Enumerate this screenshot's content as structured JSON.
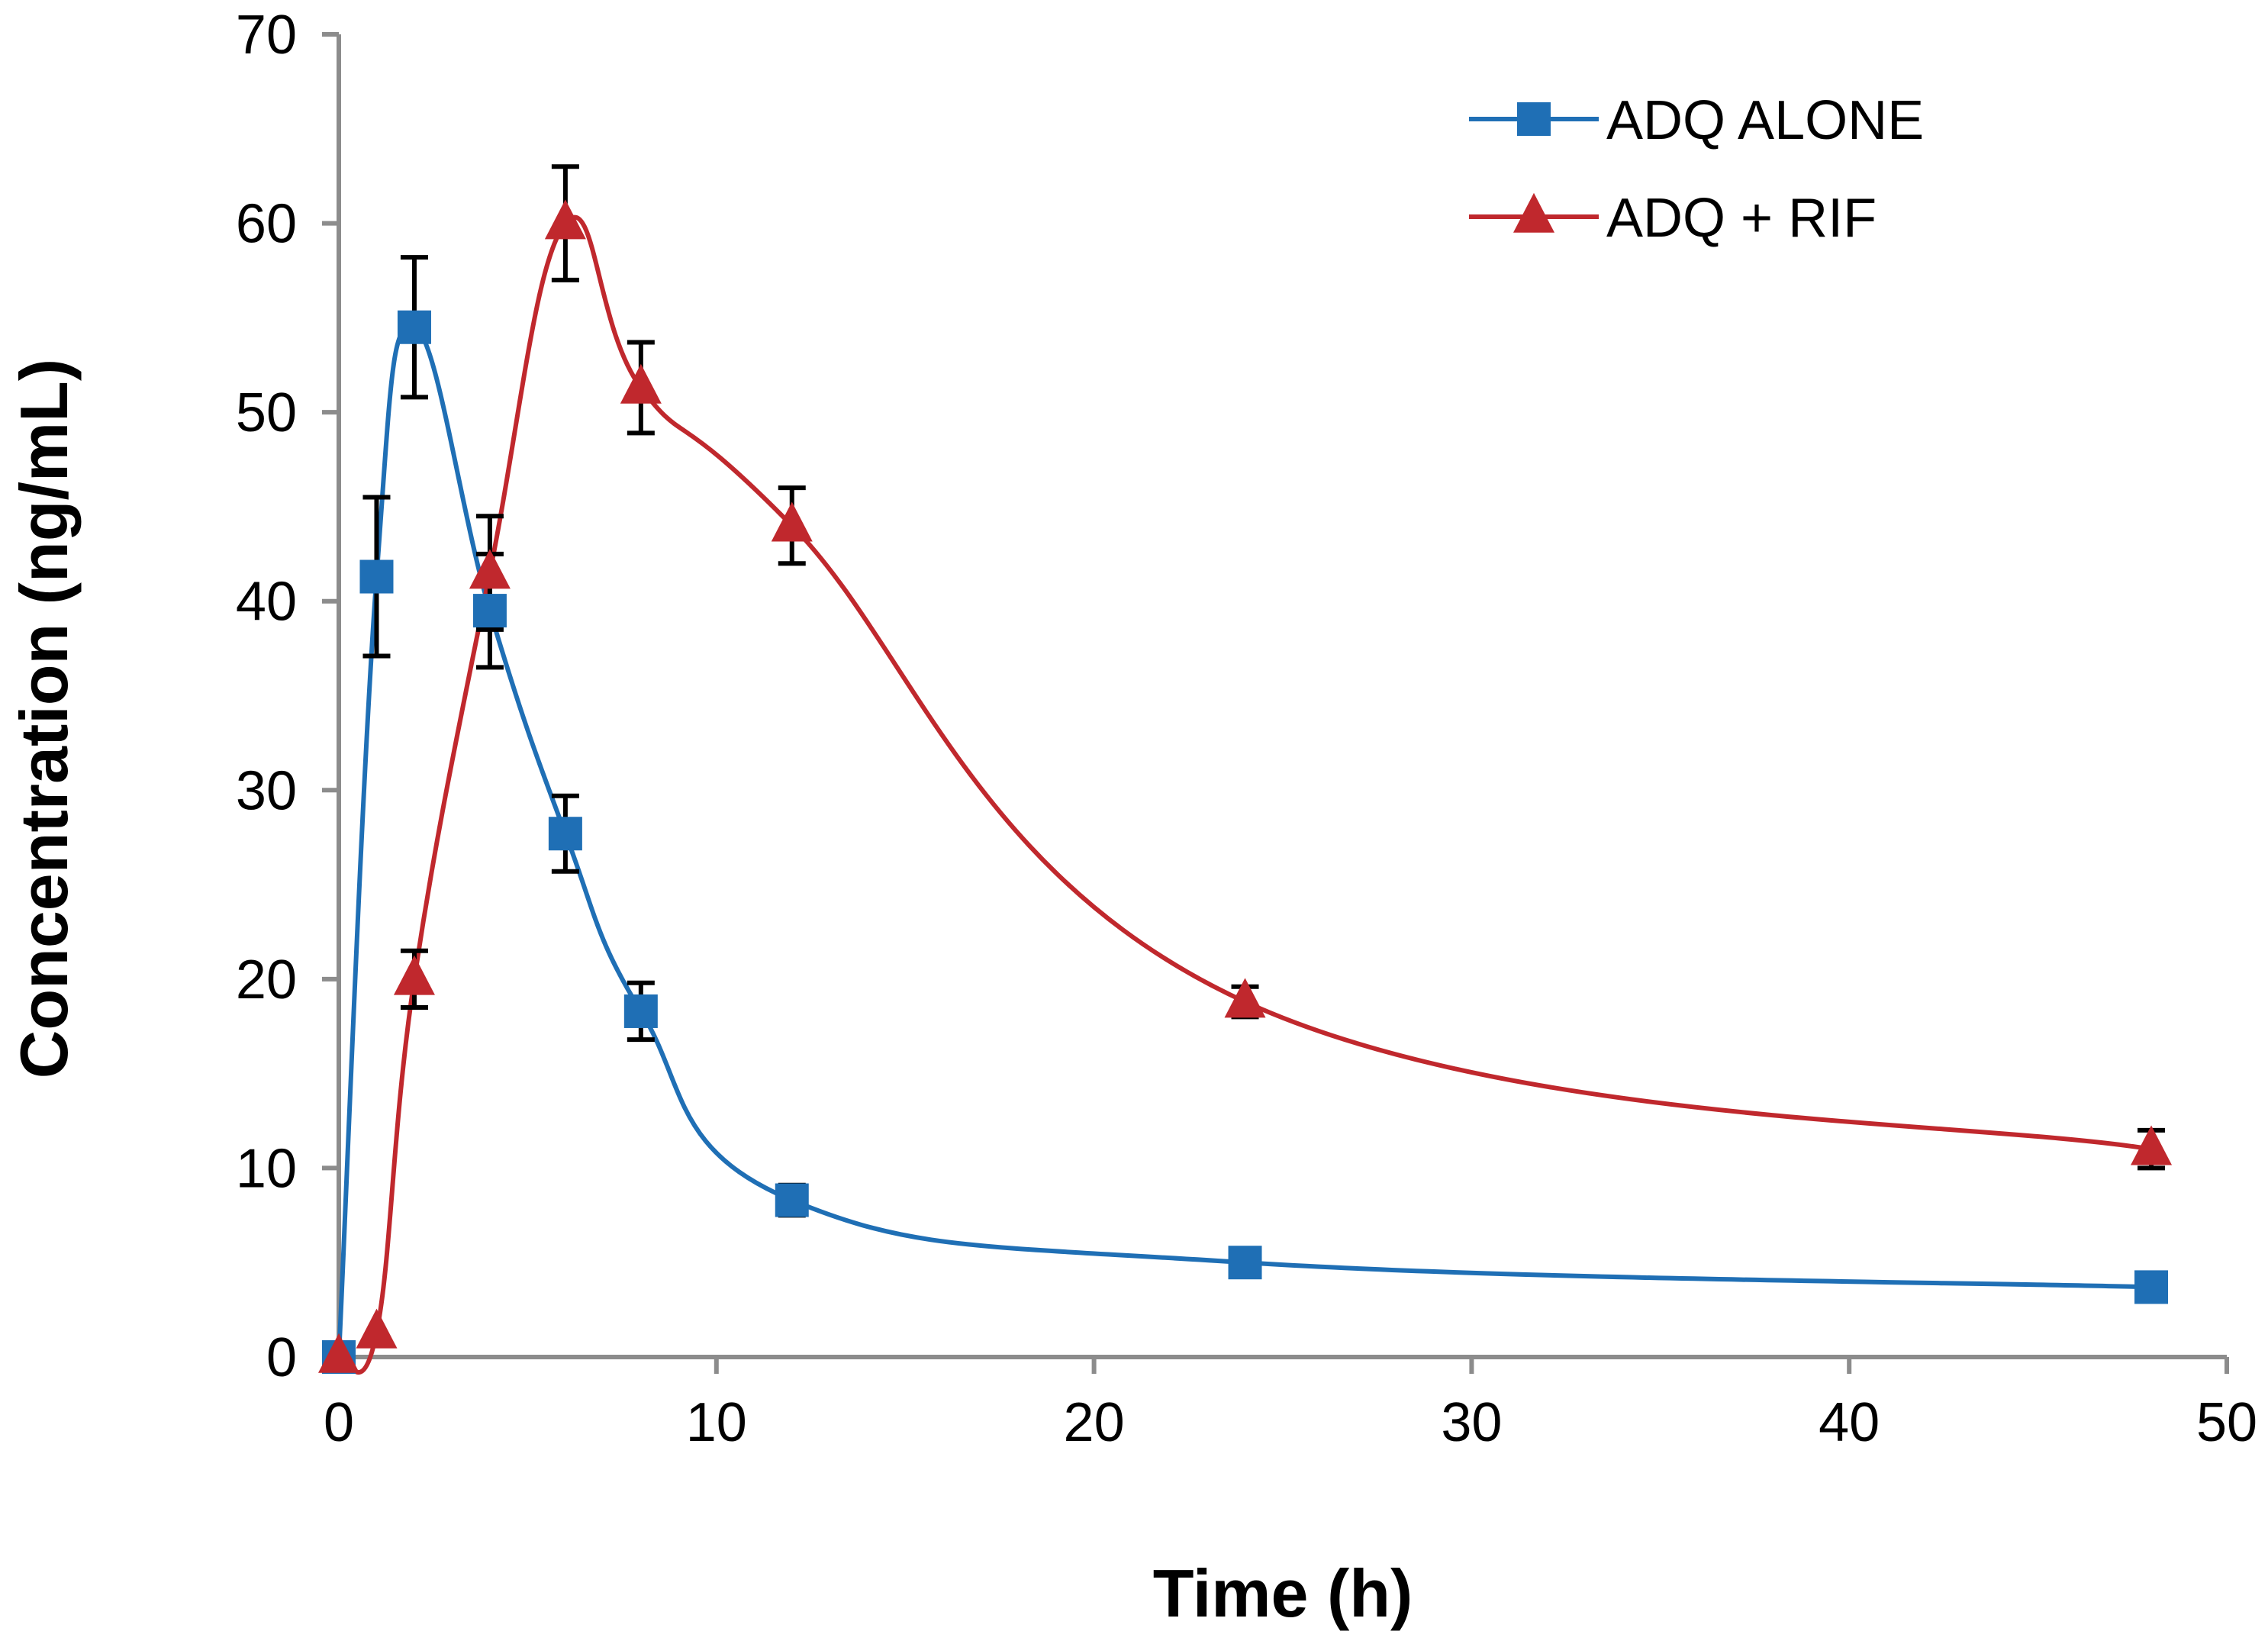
{
  "chart_data": {
    "type": "line",
    "title": "",
    "xlabel": "Time (h)",
    "ylabel": "Concentration (ng/mL)",
    "xlim": [
      0,
      50
    ],
    "ylim": [
      0,
      70
    ],
    "xticks": [
      0,
      10,
      20,
      30,
      40,
      50
    ],
    "yticks": [
      0,
      10,
      20,
      30,
      40,
      50,
      60,
      70
    ],
    "grid": false,
    "legend": {
      "position": "top-right"
    },
    "series": [
      {
        "name": "ADQ ALONE",
        "color": "#1F6FB5",
        "marker": "square",
        "x": [
          0,
          1,
          2,
          4,
          6,
          8,
          12,
          24,
          48
        ],
        "y": [
          0,
          41.3,
          54.5,
          39.5,
          27.7,
          18.3,
          8.3,
          5.0,
          3.7
        ],
        "error": [
          0,
          4.2,
          3.7,
          3.0,
          2.0,
          1.5,
          0.8,
          0,
          0
        ]
      },
      {
        "name": "ADQ + RIF",
        "color": "#C0282D",
        "marker": "triangle",
        "x": [
          0,
          1,
          2,
          4,
          6,
          8,
          12,
          24,
          48
        ],
        "y": [
          0,
          1.3,
          20.0,
          41.5,
          60.0,
          51.3,
          44.0,
          18.8,
          11.0
        ],
        "error": [
          0,
          0,
          1.5,
          3.0,
          3.0,
          2.4,
          2.0,
          0.8,
          1.0
        ]
      }
    ]
  }
}
